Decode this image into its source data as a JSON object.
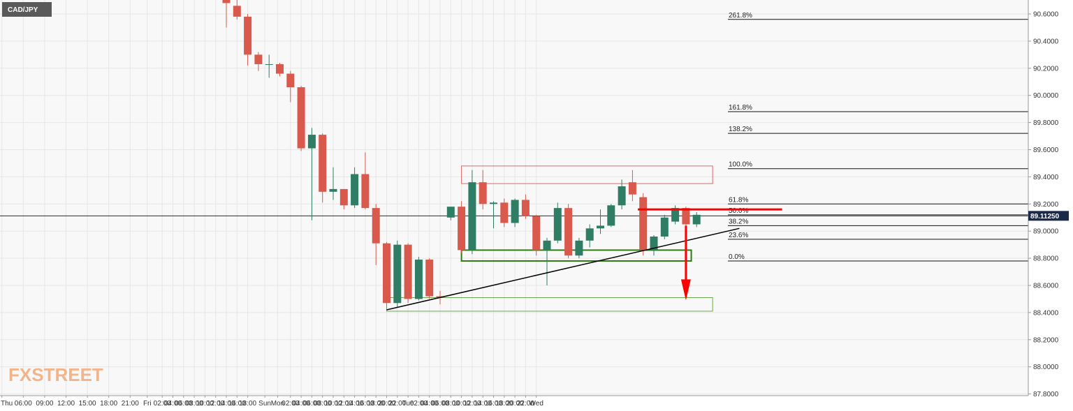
{
  "chart_data": {
    "type": "candlestick",
    "symbol": "CAD/JPY",
    "watermark": {
      "left": "FX",
      "right": "STREET"
    },
    "current_price": {
      "value": 89.1125,
      "label": "89.11250"
    },
    "colors": {
      "up": "#2e7d64",
      "down": "#d9594c",
      "resistance_box": "#e06666",
      "support_box": "#2e7d12",
      "target_box": "#6aa84f",
      "arrow": "#ff0000",
      "trendline": "#000000",
      "price_line": "#1c2a4a"
    },
    "ylim": [
      87.8,
      90.7
    ],
    "y_ticks": [
      "90.6000",
      "90.4000",
      "90.2000",
      "90.0000",
      "89.8000",
      "89.6000",
      "89.4000",
      "89.2000",
      "89.0000",
      "88.8000",
      "88.6000",
      "88.4000",
      "88.2000",
      "88.0000",
      "87.8000"
    ],
    "y_tick_values": [
      90.6,
      90.4,
      90.2,
      90.0,
      89.8,
      89.6,
      89.4,
      89.2,
      89.0,
      88.8,
      88.6,
      88.4,
      88.2,
      88.0,
      87.8
    ],
    "x_ticks": [
      "Thu",
      "06:00",
      "09:00",
      "12:00",
      "15:00",
      "18:00",
      "21:00",
      "Fri",
      "02:00",
      "04:00",
      "06:00",
      "08:00",
      "10:00",
      "12:00",
      "14:00",
      "16:00",
      "18:00",
      "Sun",
      "Mon",
      "02:00",
      "04:00",
      "06:00",
      "08:00",
      "10:00",
      "12:00",
      "14:00",
      "16:00",
      "18:00",
      "20:00",
      "22:00",
      "Tue",
      "02:00",
      "04:00",
      "06:00",
      "08:00",
      "10:00",
      "12:00",
      "14:00",
      "16:00",
      "18:00",
      "20:00",
      "22:00",
      "Wed"
    ],
    "x_tick_index": [
      -21,
      -19,
      -17,
      -15,
      -13,
      -11,
      -9,
      -7.4,
      -6,
      -5,
      -4,
      -3,
      -2,
      -1,
      0,
      1,
      2,
      3.6,
      4.8,
      6,
      7,
      8,
      9,
      10,
      11,
      12,
      13,
      14,
      15,
      16,
      17,
      18,
      19,
      20,
      21,
      22,
      23,
      24,
      25,
      26,
      27,
      28,
      29
    ],
    "candles": [
      {
        "o": 90.74,
        "h": 90.82,
        "l": 90.5,
        "c": 90.68
      },
      {
        "o": 90.66,
        "h": 90.72,
        "l": 90.56,
        "c": 90.58
      },
      {
        "o": 90.58,
        "h": 90.6,
        "l": 90.22,
        "c": 90.3
      },
      {
        "o": 90.3,
        "h": 90.32,
        "l": 90.18,
        "c": 90.23
      },
      {
        "o": 90.23,
        "h": 90.3,
        "l": 90.13,
        "c": 90.23
      },
      {
        "o": 90.23,
        "h": 90.24,
        "l": 90.14,
        "c": 90.16
      },
      {
        "o": 90.16,
        "h": 90.18,
        "l": 89.95,
        "c": 90.06
      },
      {
        "o": 90.06,
        "h": 90.07,
        "l": 89.59,
        "c": 89.61
      },
      {
        "o": 89.61,
        "h": 89.76,
        "l": 89.08,
        "c": 89.71
      },
      {
        "o": 89.71,
        "h": 89.72,
        "l": 89.21,
        "c": 89.29
      },
      {
        "o": 89.29,
        "h": 89.47,
        "l": 89.23,
        "c": 89.31
      },
      {
        "o": 89.31,
        "h": 89.31,
        "l": 89.16,
        "c": 89.19
      },
      {
        "o": 89.19,
        "h": 89.47,
        "l": 89.17,
        "c": 89.42
      },
      {
        "o": 89.42,
        "h": 89.58,
        "l": 89.16,
        "c": 89.17
      },
      {
        "o": 89.17,
        "h": 89.2,
        "l": 88.75,
        "c": 88.91
      },
      {
        "o": 88.91,
        "h": 88.92,
        "l": 88.42,
        "c": 88.47
      },
      {
        "o": 88.47,
        "h": 88.93,
        "l": 88.44,
        "c": 88.9
      },
      {
        "o": 88.9,
        "h": 88.91,
        "l": 88.47,
        "c": 88.5
      },
      {
        "o": 88.5,
        "h": 88.81,
        "l": 88.49,
        "c": 88.79
      },
      {
        "o": 88.79,
        "h": 88.8,
        "l": 88.5,
        "c": 88.52
      },
      {
        "o": 88.52,
        "h": 88.56,
        "l": 88.46,
        "c": 88.51
      },
      {
        "o": 89.1,
        "h": 89.18,
        "l": 89.08,
        "c": 89.18
      },
      {
        "o": 89.18,
        "h": 89.22,
        "l": 88.84,
        "c": 88.86
      },
      {
        "o": 88.86,
        "h": 89.45,
        "l": 88.83,
        "c": 89.36
      },
      {
        "o": 89.36,
        "h": 89.45,
        "l": 89.16,
        "c": 89.2
      },
      {
        "o": 89.2,
        "h": 89.22,
        "l": 89.02,
        "c": 89.21
      },
      {
        "o": 89.21,
        "h": 89.24,
        "l": 89.03,
        "c": 89.06
      },
      {
        "o": 89.06,
        "h": 89.24,
        "l": 89.03,
        "c": 89.23
      },
      {
        "o": 89.23,
        "h": 89.27,
        "l": 89.09,
        "c": 89.11
      },
      {
        "o": 89.11,
        "h": 89.12,
        "l": 88.82,
        "c": 88.86
      },
      {
        "o": 88.86,
        "h": 88.95,
        "l": 88.6,
        "c": 88.93
      },
      {
        "o": 88.93,
        "h": 89.21,
        "l": 88.91,
        "c": 89.17
      },
      {
        "o": 89.17,
        "h": 89.2,
        "l": 88.8,
        "c": 88.82
      },
      {
        "o": 88.82,
        "h": 88.95,
        "l": 88.8,
        "c": 88.93
      },
      {
        "o": 88.93,
        "h": 89.05,
        "l": 88.88,
        "c": 89.02
      },
      {
        "o": 89.02,
        "h": 89.16,
        "l": 88.98,
        "c": 89.04
      },
      {
        "o": 89.04,
        "h": 89.2,
        "l": 89.03,
        "c": 89.19
      },
      {
        "o": 89.19,
        "h": 89.38,
        "l": 89.16,
        "c": 89.33
      },
      {
        "o": 89.36,
        "h": 89.45,
        "l": 89.22,
        "c": 89.27
      },
      {
        "o": 89.25,
        "h": 89.28,
        "l": 88.82,
        "c": 88.86
      },
      {
        "o": 88.86,
        "h": 88.97,
        "l": 88.82,
        "c": 88.96
      },
      {
        "o": 88.96,
        "h": 89.12,
        "l": 88.94,
        "c": 89.1
      },
      {
        "o": 89.07,
        "h": 89.19,
        "l": 89.05,
        "c": 89.17
      },
      {
        "o": 89.17,
        "h": 89.18,
        "l": 89.04,
        "c": 89.05
      },
      {
        "o": 89.05,
        "h": 89.14,
        "l": 89.03,
        "c": 89.12
      }
    ],
    "fibonacci": [
      {
        "label": "261.8%",
        "price": 90.56
      },
      {
        "label": "161.8%",
        "price": 89.88
      },
      {
        "label": "138.2%",
        "price": 89.72
      },
      {
        "label": "100.0%",
        "price": 89.46
      },
      {
        "label": "61.8%",
        "price": 89.2
      },
      {
        "label": "50.0%",
        "price": 89.12
      },
      {
        "label": "38.2%",
        "price": 89.04
      },
      {
        "label": "23.6%",
        "price": 88.94
      },
      {
        "label": "0.0%",
        "price": 88.78
      }
    ],
    "resistance_zone": {
      "from_index": 22,
      "to_index": 45.5,
      "low": 89.35,
      "high": 89.48
    },
    "support_zone": {
      "from_index": 22,
      "to_index": 43.5,
      "low": 88.78,
      "high": 88.86
    },
    "target_zone": {
      "from_index": 15,
      "to_index": 45.5,
      "low": 88.41,
      "high": 88.51
    },
    "trendline": {
      "from": {
        "index": 15,
        "price": 88.42
      },
      "to": {
        "index": 48,
        "price": 89.02
      }
    },
    "resistance_line": {
      "from_index": 38.5,
      "to_index": 52,
      "price": 89.16
    },
    "down_arrow": {
      "index": 43,
      "from_price": 89.04,
      "to_price": 88.49
    }
  }
}
